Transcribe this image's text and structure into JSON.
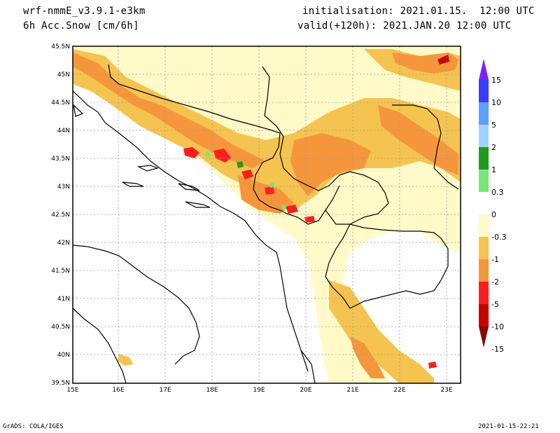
{
  "header": {
    "model": "wrf-nmmE_v3.9.1-e3km",
    "variable": "6h Acc.Snow [cm/6h]",
    "init": "initialisation: 2021.01.15.  12:00 UTC",
    "valid": "valid(+120h): 2021.JAN.20 12:00 UTC"
  },
  "footer": {
    "credit": "GrADS: COLA/IGES",
    "timestamp": "2021-01-15-22:21"
  },
  "axes": {
    "lat_labels": [
      "45.5N",
      "45N",
      "44.5N",
      "44N",
      "43.5N",
      "43N",
      "42.5N",
      "42N",
      "41.5N",
      "41N",
      "40.5N",
      "40N",
      "39.5N"
    ],
    "lon_labels": [
      "15E",
      "16E",
      "17E",
      "18E",
      "19E",
      "20E",
      "21E",
      "22E",
      "23E"
    ]
  },
  "colorbar": {
    "labels": [
      "15",
      "10",
      "5",
      "2",
      "1",
      "0.3",
      "0",
      "-0.3",
      "-1",
      "-2",
      "-5",
      "-10",
      "-15"
    ],
    "colors": [
      "#7a22ff",
      "#3c3cff",
      "#5aa0ff",
      "#a0d2ff",
      "#1e9b1e",
      "#78e678",
      "#ffffff",
      "#fffac8",
      "#f5c350",
      "#f5963c",
      "#ff1e1e",
      "#c80000",
      "#8c0000"
    ]
  }
}
